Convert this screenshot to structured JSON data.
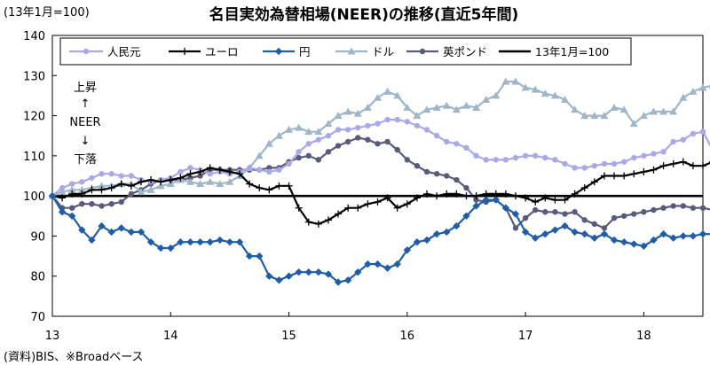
{
  "chart_data": {
    "type": "line",
    "title": "名目実効為替相場(NEER)の推移(直近5年間)",
    "ylabel": "(13年1月=100)",
    "source": "(資料)BIS、※Broadベース",
    "annotation": {
      "up": "上昇",
      "up_arrow": "↑",
      "mid": "NEER",
      "down_arrow": "↓",
      "down": "下落"
    },
    "ylim": [
      70,
      140
    ],
    "yticks": [
      70,
      80,
      90,
      100,
      110,
      120,
      130,
      140
    ],
    "xlim": [
      0,
      66
    ],
    "xticks": [
      {
        "label": "13",
        "x": 0
      },
      {
        "label": "14",
        "x": 12
      },
      {
        "label": "15",
        "x": 24
      },
      {
        "label": "16",
        "x": 36
      },
      {
        "label": "17",
        "x": 48
      },
      {
        "label": "18",
        "x": 60
      }
    ],
    "baseline": {
      "name": "13年1月=100",
      "value": 100,
      "color": "#000000"
    },
    "series": [
      {
        "name": "人民元",
        "color": "#a9a9e8",
        "marker": "circle",
        "values": [
          100,
          102,
          103,
          103.5,
          104.5,
          105.5,
          105.5,
          105,
          105,
          104,
          103.5,
          104,
          104.5,
          106,
          107,
          106.5,
          105.5,
          106,
          105.5,
          106,
          107,
          106.5,
          106,
          106.5,
          108,
          111,
          113,
          114,
          115,
          116.5,
          116.5,
          117,
          117.5,
          118,
          119,
          119,
          118.5,
          117.5,
          116.5,
          115,
          113.5,
          113,
          112,
          110,
          109,
          109,
          109,
          109.5,
          110,
          110,
          109.5,
          109,
          108,
          107,
          107,
          107.5,
          108,
          108,
          108.5,
          109.5,
          110,
          110.5,
          111,
          113.5,
          114,
          115.5,
          116,
          111.5
        ]
      },
      {
        "name": "ユーロ",
        "color": "#000000",
        "marker": "plus",
        "values": [
          100,
          99.5,
          100.5,
          100.5,
          101.5,
          101.5,
          102,
          103,
          102.5,
          103.5,
          104,
          103.5,
          104,
          104.5,
          105.5,
          106,
          107,
          106.5,
          106,
          105.5,
          103,
          102,
          101.5,
          102.5,
          102.5,
          97,
          93.5,
          93,
          94,
          95.5,
          97,
          97,
          98,
          98.5,
          99.5,
          97,
          98,
          99.5,
          100.5,
          100,
          100.5,
          100.5,
          100,
          100,
          100.5,
          100.5,
          100.5,
          100,
          99.5,
          98.5,
          99.5,
          99,
          99,
          100.5,
          102,
          103.5,
          105,
          105,
          105,
          105.5,
          106,
          106.5,
          107.5,
          108,
          108.5,
          107.5,
          107.5,
          108.5
        ]
      },
      {
        "name": "円",
        "color": "#1f5ea6",
        "marker": "diamond",
        "values": [
          100,
          96,
          95,
          91.5,
          89,
          92.5,
          91,
          92,
          91,
          91,
          88.5,
          87,
          87,
          88.5,
          88.5,
          88.5,
          88.5,
          89,
          88.5,
          88.5,
          85,
          85,
          80,
          79,
          80,
          81,
          81,
          81,
          80.5,
          78.5,
          79,
          81,
          83,
          83,
          82,
          83,
          86.5,
          88.5,
          89,
          90.5,
          91,
          92.5,
          95,
          97.5,
          99,
          99,
          97,
          95.5,
          91,
          89.5,
          90.5,
          91.5,
          92.5,
          91,
          90.5,
          89.5,
          90.5,
          89,
          88.5,
          88,
          87.5,
          89,
          90.5,
          89.5,
          90,
          90,
          90.5,
          90.5
        ]
      },
      {
        "name": "ドル",
        "color": "#9fb6c9",
        "marker": "triangle",
        "values": [
          100,
          101,
          101.5,
          101.5,
          102,
          102.5,
          102.5,
          103,
          103,
          101,
          101.5,
          102.5,
          103,
          104,
          103.5,
          103,
          103.5,
          103,
          103.5,
          105,
          107,
          110,
          113,
          115,
          116.5,
          117,
          116,
          116,
          118,
          120,
          121,
          120.5,
          122,
          124.5,
          126,
          125,
          122,
          120,
          121.5,
          122,
          122.5,
          121.5,
          122.5,
          122,
          124,
          125,
          128.5,
          128.5,
          127,
          126.5,
          125.5,
          125,
          124,
          121.5,
          120,
          120,
          120,
          122,
          121.5,
          118,
          120,
          121,
          121,
          121,
          124.5,
          126,
          127,
          127.5
        ]
      },
      {
        "name": "英ポンド",
        "color": "#5a5a7a",
        "marker": "circle",
        "values": [
          100,
          97,
          97,
          98,
          98,
          97.5,
          98,
          98.5,
          100.5,
          101.5,
          103,
          104,
          104,
          104,
          104.5,
          105,
          106.5,
          106.5,
          106.5,
          106.5,
          106.5,
          106.5,
          107,
          107,
          108.5,
          109.5,
          110,
          109,
          111,
          112.5,
          113.5,
          114.5,
          114,
          113,
          113.5,
          111.5,
          109,
          107.5,
          106,
          105.5,
          105,
          104,
          102,
          99,
          98.5,
          99,
          97,
          92,
          94.5,
          96.5,
          96,
          96,
          95.5,
          96,
          94,
          93,
          92,
          94.5,
          95,
          95.5,
          96,
          96.5,
          97,
          97.5,
          97.5,
          97,
          97,
          96.5
        ]
      }
    ]
  }
}
